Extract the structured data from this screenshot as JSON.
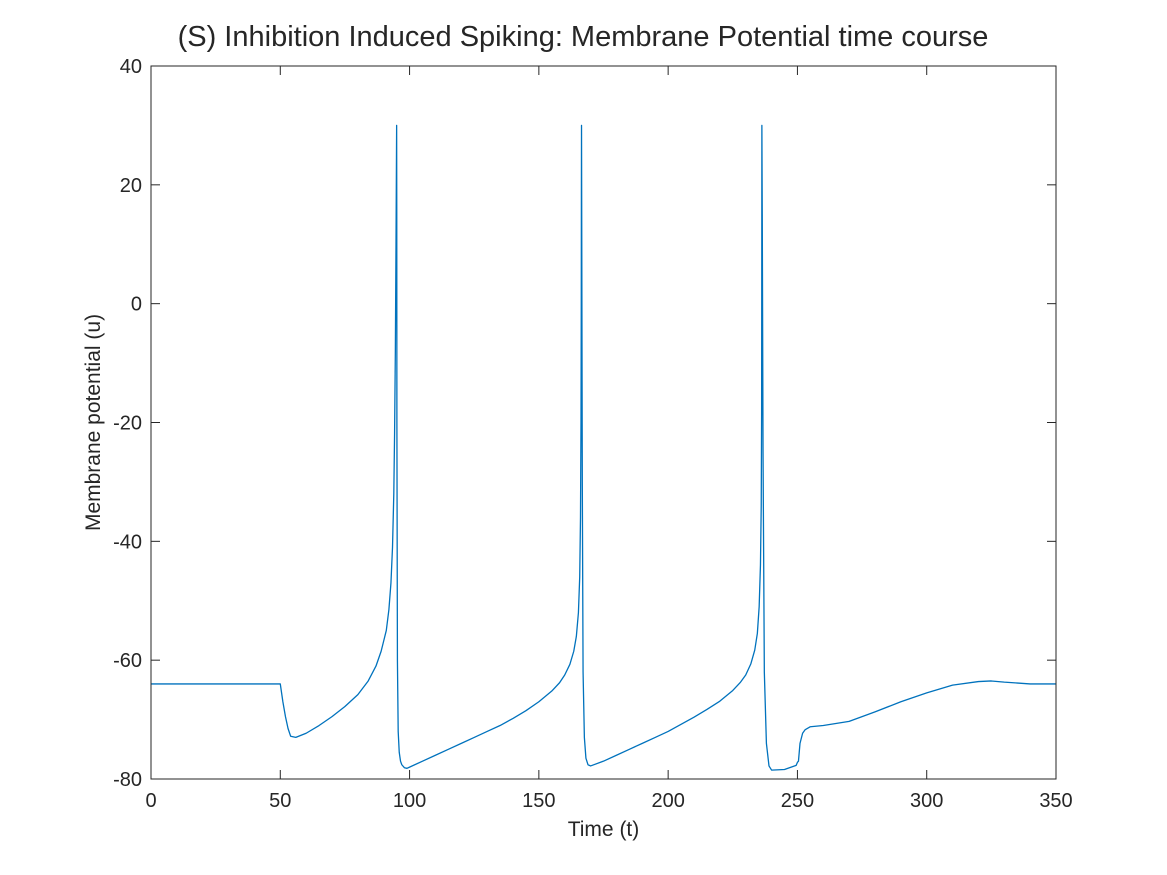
{
  "chart_data": {
    "type": "line",
    "title": "(S)  Inhibition Induced Spiking: Membrane Potential time course",
    "xlabel": "Time (t)",
    "ylabel": "Membrane potential (u)",
    "xlim": [
      0,
      350
    ],
    "ylim": [
      -80,
      40
    ],
    "xticks": [
      0,
      50,
      100,
      150,
      200,
      250,
      300,
      350
    ],
    "yticks": [
      -80,
      -60,
      -40,
      -20,
      0,
      20,
      40
    ],
    "grid": false,
    "box": true,
    "line_color": "#0072BD",
    "series": [
      {
        "x": [
          0,
          10,
          20,
          30,
          40,
          50,
          50.5,
          51,
          52,
          53,
          54,
          56,
          60,
          65,
          70,
          75,
          80,
          84,
          87,
          89,
          91,
          92,
          92.8,
          93.4,
          93.9,
          94.2,
          94.5,
          94.75,
          94.95,
          95.0,
          95.05,
          95.1,
          95.3,
          95.6,
          96.0,
          96.5,
          97.0,
          98.0,
          99.0,
          100,
          105,
          110,
          115,
          120,
          125,
          130,
          135,
          140,
          145,
          150,
          155,
          158,
          160,
          162,
          163.5,
          164.5,
          165.3,
          165.8,
          166.1,
          166.3,
          166.4,
          166.45,
          166.5,
          166.6,
          166.8,
          167.1,
          167.6,
          168.2,
          169,
          170,
          175,
          180,
          185,
          190,
          195,
          200,
          205,
          210,
          215,
          220,
          225,
          228,
          230,
          232,
          233.5,
          234.5,
          235.2,
          235.7,
          236.0,
          236.15,
          236.2,
          236.25,
          236.4,
          236.7,
          237.2,
          238,
          239,
          240,
          245,
          249.5,
          250,
          250.4,
          251,
          252,
          253,
          255,
          260,
          270,
          280,
          290,
          300,
          310,
          320,
          325,
          330,
          340,
          350
        ],
        "y": [
          -64,
          -64,
          -64,
          -64,
          -64,
          -64,
          -65.5,
          -67,
          -69.5,
          -71.5,
          -72.8,
          -73,
          -72.3,
          -71,
          -69.5,
          -67.8,
          -65.8,
          -63.5,
          -61,
          -58.5,
          -55,
          -51.5,
          -47,
          -41,
          -32,
          -22,
          -8,
          10,
          26,
          30,
          16,
          -20,
          -60,
          -72,
          -75.5,
          -77,
          -77.6,
          -78.1,
          -78.2,
          -78,
          -77,
          -76,
          -75,
          -74,
          -73,
          -72,
          -71,
          -69.8,
          -68.5,
          -67,
          -65.2,
          -63.8,
          -62.5,
          -60.7,
          -58.5,
          -56,
          -52,
          -46,
          -36,
          -20,
          0,
          18,
          30,
          10,
          -30,
          -62,
          -73,
          -76.5,
          -77.6,
          -77.8,
          -77,
          -76,
          -75,
          -74,
          -73,
          -72,
          -70.8,
          -69.6,
          -68.3,
          -66.9,
          -65.1,
          -63.7,
          -62.5,
          -60.6,
          -58.3,
          -55.5,
          -51,
          -44,
          -34,
          -18,
          2,
          30,
          15,
          -25,
          -62,
          -74,
          -77.8,
          -78.5,
          -78.4,
          -77.7,
          -77.2,
          -77,
          -74,
          -72.3,
          -71.7,
          -71.2,
          -71,
          -70.3,
          -68.7,
          -67,
          -65.5,
          -64.2,
          -63.6,
          -63.5,
          -63.7,
          -64,
          -64
        ]
      }
    ]
  }
}
